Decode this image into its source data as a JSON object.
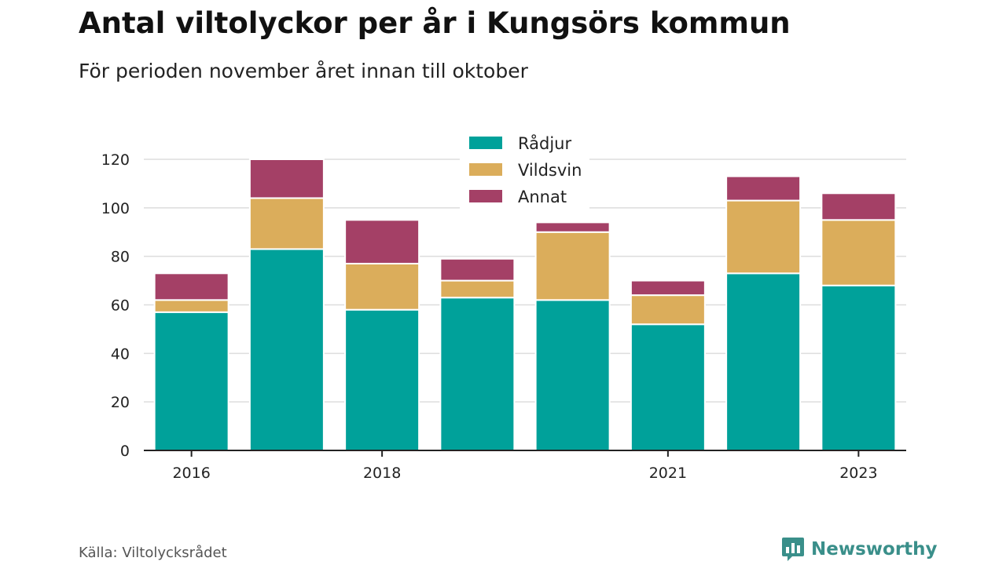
{
  "title": "Antal viltolyckor per år i Kungsörs kommun",
  "subtitle": "För perioden november året innan till oktober",
  "source": "Källa: Viltolycksrådet",
  "brand": "Newsworthy",
  "colors": {
    "radjur": "#00a19a",
    "vildsvin": "#dbad5b",
    "annat": "#a44066",
    "axis": "#222222",
    "grid": "#dddddd",
    "brand": "#3a8f8a"
  },
  "chart_data": {
    "type": "bar",
    "stacked": true,
    "categories": [
      "2016",
      "2017",
      "2018",
      "2019",
      "2020",
      "2021",
      "2022",
      "2023"
    ],
    "x_tick_labels": [
      "2016",
      "",
      "2018",
      "",
      "",
      "2021",
      "",
      "2023"
    ],
    "series": [
      {
        "name": "Rådjur",
        "values": [
          57,
          83,
          58,
          63,
          62,
          52,
          73,
          68
        ]
      },
      {
        "name": "Vildsvin",
        "values": [
          5,
          21,
          19,
          7,
          28,
          12,
          30,
          27
        ]
      },
      {
        "name": "Annat",
        "values": [
          11,
          16,
          18,
          9,
          4,
          6,
          10,
          11
        ]
      }
    ],
    "y_ticks": [
      0,
      20,
      40,
      60,
      80,
      100,
      120
    ],
    "ylim": [
      0,
      120
    ],
    "grid": true,
    "legend_position": "top-center"
  }
}
